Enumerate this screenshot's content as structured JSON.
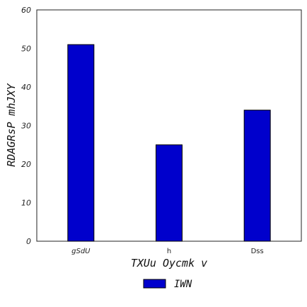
{
  "chart_data": {
    "type": "bar",
    "categories": [
      "gSdU",
      "h",
      "Dss"
    ],
    "category_italic": [
      true,
      false,
      false
    ],
    "series": [
      {
        "name": "IWN",
        "values": [
          51,
          25,
          34
        ],
        "color": "#0000cc"
      }
    ],
    "xlabel": "TXUu Oycmk v",
    "ylabel": "RDAGRsP mhJXY",
    "ylim": [
      0,
      60
    ],
    "yticks": [
      0,
      10,
      20,
      30,
      40,
      50,
      60
    ],
    "grid": false,
    "legend_position": "bottom-center"
  }
}
